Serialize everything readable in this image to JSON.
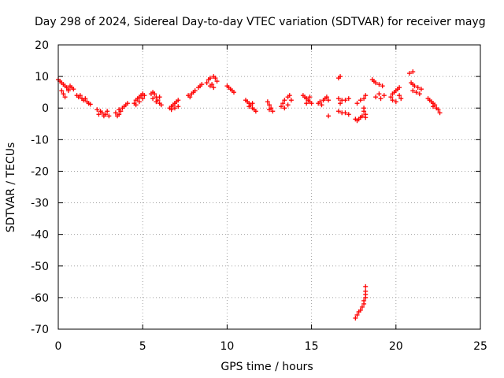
{
  "chart_data": {
    "type": "scatter",
    "title": "Day 298 of 2024, Sidereal Day-to-day VTEC variation (SDTVAR) for receiver mayg",
    "xlabel": "GPS time / hours",
    "ylabel": "SDTVAR / TECUs",
    "xlim": [
      0,
      25
    ],
    "ylim": [
      -70,
      20
    ],
    "xticks": [
      "0",
      "5",
      "10",
      "15",
      "20",
      "25"
    ],
    "yticks": [
      "20",
      "10",
      "0",
      "-10",
      "-20",
      "-30",
      "-40",
      "-50",
      "-60",
      "-70"
    ],
    "grid": true,
    "marker": "+",
    "series": [
      {
        "name": "SDTVAR",
        "color": "#ff0000",
        "points": [
          [
            0.0,
            9.0
          ],
          [
            0.1,
            8.5
          ],
          [
            0.2,
            8.0
          ],
          [
            0.3,
            7.5
          ],
          [
            0.4,
            7.0
          ],
          [
            0.5,
            6.5
          ],
          [
            0.6,
            6.0
          ],
          [
            0.8,
            6.5
          ],
          [
            0.2,
            5.5
          ],
          [
            0.3,
            4.5
          ],
          [
            0.4,
            3.5
          ],
          [
            0.6,
            5.5
          ],
          [
            0.7,
            7.0
          ],
          [
            0.9,
            6.0
          ],
          [
            1.1,
            4.0
          ],
          [
            1.2,
            3.5
          ],
          [
            1.4,
            3.0
          ],
          [
            1.5,
            2.5
          ],
          [
            1.7,
            2.0
          ],
          [
            1.8,
            1.5
          ],
          [
            1.9,
            1.2
          ],
          [
            1.6,
            3.0
          ],
          [
            1.3,
            4.0
          ],
          [
            2.3,
            -0.5
          ],
          [
            2.5,
            -1.0
          ],
          [
            2.6,
            -1.5
          ],
          [
            2.8,
            -2.0
          ],
          [
            3.0,
            -2.5
          ],
          [
            2.4,
            -2.0
          ],
          [
            2.7,
            -2.5
          ],
          [
            2.9,
            -1.0
          ],
          [
            3.4,
            -1.5
          ],
          [
            3.5,
            -2.5
          ],
          [
            3.6,
            -2.0
          ],
          [
            3.7,
            -1.0
          ],
          [
            3.8,
            0.0
          ],
          [
            3.9,
            0.5
          ],
          [
            4.0,
            1.0
          ],
          [
            4.1,
            1.5
          ],
          [
            3.6,
            -0.5
          ],
          [
            4.5,
            1.5
          ],
          [
            4.6,
            2.5
          ],
          [
            4.7,
            3.0
          ],
          [
            4.8,
            3.5
          ],
          [
            4.9,
            4.0
          ],
          [
            5.0,
            4.5
          ],
          [
            5.1,
            4.0
          ],
          [
            4.6,
            1.0
          ],
          [
            4.8,
            2.0
          ],
          [
            5.0,
            3.0
          ],
          [
            5.5,
            4.5
          ],
          [
            5.6,
            5.0
          ],
          [
            5.7,
            4.5
          ],
          [
            5.8,
            3.5
          ],
          [
            5.9,
            2.5
          ],
          [
            6.0,
            1.5
          ],
          [
            6.1,
            1.0
          ],
          [
            5.6,
            3.0
          ],
          [
            5.8,
            2.0
          ],
          [
            6.0,
            3.5
          ],
          [
            6.6,
            0.0
          ],
          [
            6.7,
            0.5
          ],
          [
            6.8,
            1.0
          ],
          [
            6.9,
            1.5
          ],
          [
            7.0,
            2.0
          ],
          [
            7.1,
            2.5
          ],
          [
            6.7,
            -0.5
          ],
          [
            6.9,
            0.0
          ],
          [
            7.1,
            0.5
          ],
          [
            7.7,
            4.0
          ],
          [
            7.9,
            4.5
          ],
          [
            8.1,
            5.5
          ],
          [
            8.3,
            6.5
          ],
          [
            8.5,
            7.5
          ],
          [
            7.8,
            3.5
          ],
          [
            8.0,
            5.0
          ],
          [
            8.4,
            7.0
          ],
          [
            8.8,
            8.0
          ],
          [
            8.9,
            9.0
          ],
          [
            9.0,
            9.5
          ],
          [
            9.2,
            10.0
          ],
          [
            9.3,
            9.5
          ],
          [
            9.4,
            8.5
          ],
          [
            9.1,
            7.5
          ],
          [
            9.2,
            6.5
          ],
          [
            9.0,
            7.0
          ],
          [
            10.0,
            7.0
          ],
          [
            10.1,
            6.5
          ],
          [
            10.2,
            6.0
          ],
          [
            10.3,
            5.5
          ],
          [
            10.4,
            5.0
          ],
          [
            11.1,
            2.5
          ],
          [
            11.2,
            2.0
          ],
          [
            11.3,
            1.5
          ],
          [
            11.4,
            1.0
          ],
          [
            11.5,
            0.0
          ],
          [
            11.6,
            -0.5
          ],
          [
            11.7,
            -1.0
          ],
          [
            11.3,
            0.5
          ],
          [
            11.5,
            1.5
          ],
          [
            12.4,
            2.0
          ],
          [
            12.5,
            1.0
          ],
          [
            12.6,
            0.0
          ],
          [
            12.7,
            -1.0
          ],
          [
            12.5,
            -0.5
          ],
          [
            13.2,
            0.5
          ],
          [
            13.3,
            1.5
          ],
          [
            13.4,
            2.5
          ],
          [
            13.6,
            3.5
          ],
          [
            13.7,
            4.0
          ],
          [
            13.4,
            0.0
          ],
          [
            13.6,
            1.0
          ],
          [
            13.8,
            2.5
          ],
          [
            14.5,
            4.0
          ],
          [
            14.6,
            3.5
          ],
          [
            14.7,
            3.0
          ],
          [
            14.8,
            2.5
          ],
          [
            14.9,
            2.0
          ],
          [
            15.0,
            1.5
          ],
          [
            14.7,
            1.5
          ],
          [
            14.9,
            3.5
          ],
          [
            15.4,
            1.5
          ],
          [
            15.5,
            2.0
          ],
          [
            15.7,
            2.5
          ],
          [
            15.8,
            3.0
          ],
          [
            15.9,
            3.5
          ],
          [
            16.0,
            2.5
          ],
          [
            15.6,
            1.0
          ],
          [
            16.0,
            -2.5
          ],
          [
            16.6,
            9.5
          ],
          [
            16.7,
            10.0
          ],
          [
            16.6,
            3.0
          ],
          [
            16.8,
            2.5
          ],
          [
            17.0,
            2.5
          ],
          [
            17.2,
            3.0
          ],
          [
            16.7,
            1.5
          ],
          [
            16.6,
            -1.0
          ],
          [
            16.8,
            -1.5
          ],
          [
            17.0,
            -1.5
          ],
          [
            17.2,
            -2.0
          ],
          [
            17.6,
            -3.5
          ],
          [
            17.7,
            -4.0
          ],
          [
            17.8,
            -3.5
          ],
          [
            17.9,
            -3.0
          ],
          [
            18.0,
            -2.5
          ],
          [
            17.7,
            1.5
          ],
          [
            17.9,
            2.5
          ],
          [
            18.1,
            3.0
          ],
          [
            18.2,
            4.0
          ],
          [
            18.1,
            0.0
          ],
          [
            18.1,
            -1.0
          ],
          [
            18.2,
            -2.0
          ],
          [
            18.2,
            -3.0
          ],
          [
            17.6,
            -66.5
          ],
          [
            17.7,
            -65.5
          ],
          [
            17.8,
            -64.5
          ],
          [
            17.9,
            -64.0
          ],
          [
            18.0,
            -63.0
          ],
          [
            18.1,
            -62.0
          ],
          [
            18.1,
            -61.0
          ],
          [
            18.2,
            -60.0
          ],
          [
            18.2,
            -59.0
          ],
          [
            18.2,
            -58.0
          ],
          [
            18.2,
            -56.5
          ],
          [
            18.6,
            9.0
          ],
          [
            18.7,
            8.5
          ],
          [
            18.8,
            8.0
          ],
          [
            19.0,
            7.5
          ],
          [
            19.2,
            7.0
          ],
          [
            18.8,
            3.5
          ],
          [
            19.0,
            4.5
          ],
          [
            19.1,
            3.0
          ],
          [
            19.3,
            4.0
          ],
          [
            19.7,
            3.5
          ],
          [
            19.8,
            4.5
          ],
          [
            19.9,
            5.0
          ],
          [
            20.0,
            5.5
          ],
          [
            20.1,
            6.0
          ],
          [
            20.2,
            4.0
          ],
          [
            20.3,
            3.0
          ],
          [
            19.8,
            2.5
          ],
          [
            20.0,
            2.0
          ],
          [
            20.2,
            6.5
          ],
          [
            20.8,
            11.0
          ],
          [
            21.0,
            11.5
          ],
          [
            20.9,
            8.0
          ],
          [
            21.0,
            7.5
          ],
          [
            21.1,
            7.0
          ],
          [
            21.3,
            6.5
          ],
          [
            21.5,
            6.0
          ],
          [
            21.0,
            5.5
          ],
          [
            21.2,
            5.0
          ],
          [
            21.4,
            4.5
          ],
          [
            21.9,
            3.0
          ],
          [
            22.0,
            2.5
          ],
          [
            22.1,
            2.0
          ],
          [
            22.2,
            1.5
          ],
          [
            22.3,
            1.0
          ],
          [
            22.4,
            0.0
          ],
          [
            22.5,
            -0.5
          ],
          [
            22.6,
            -1.5
          ],
          [
            22.2,
            0.5
          ]
        ]
      }
    ]
  }
}
